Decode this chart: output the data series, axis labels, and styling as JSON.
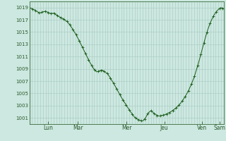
{
  "background_color": "#cce8e0",
  "plot_bg_color": "#cce8e0",
  "line_color": "#1a5c1a",
  "marker_color": "#1a5c1a",
  "grid_color_major": "#a8c8c0",
  "grid_color_minor": "#b8d4cc",
  "y_ticks": [
    1001,
    1003,
    1005,
    1007,
    1009,
    1011,
    1013,
    1015,
    1017,
    1019
  ],
  "ylim": [
    1000.0,
    1020.0
  ],
  "xlim": [
    0,
    144
  ],
  "x_tick_positions": [
    14,
    36,
    72,
    100,
    128,
    141
  ],
  "x_tick_labels": [
    "Lun",
    "Mar",
    "Mer",
    "Jeu",
    "Ven",
    "Sam"
  ],
  "pressure_points": [
    [
      0,
      1019.0
    ],
    [
      2,
      1018.8
    ],
    [
      4,
      1018.6
    ],
    [
      6,
      1018.3
    ],
    [
      8,
      1018.1
    ],
    [
      10,
      1018.3
    ],
    [
      12,
      1018.4
    ],
    [
      14,
      1018.2
    ],
    [
      16,
      1018.0
    ],
    [
      18,
      1018.1
    ],
    [
      20,
      1017.8
    ],
    [
      22,
      1017.5
    ],
    [
      24,
      1017.3
    ],
    [
      26,
      1017.0
    ],
    [
      28,
      1016.7
    ],
    [
      30,
      1016.2
    ],
    [
      32,
      1015.5
    ],
    [
      34,
      1014.8
    ],
    [
      36,
      1014.0
    ],
    [
      38,
      1013.1
    ],
    [
      40,
      1012.2
    ],
    [
      42,
      1011.3
    ],
    [
      44,
      1010.4
    ],
    [
      46,
      1009.6
    ],
    [
      48,
      1008.9
    ],
    [
      50,
      1008.5
    ],
    [
      52,
      1008.7
    ],
    [
      54,
      1008.8
    ],
    [
      56,
      1008.5
    ],
    [
      58,
      1008.2
    ],
    [
      60,
      1007.5
    ],
    [
      62,
      1006.8
    ],
    [
      64,
      1006.0
    ],
    [
      66,
      1005.2
    ],
    [
      68,
      1004.4
    ],
    [
      70,
      1003.7
    ],
    [
      72,
      1003.0
    ],
    [
      74,
      1002.3
    ],
    [
      76,
      1001.7
    ],
    [
      78,
      1001.1
    ],
    [
      80,
      1000.8
    ],
    [
      82,
      1000.6
    ],
    [
      84,
      1000.5
    ],
    [
      86,
      1001.0
    ],
    [
      88,
      1001.8
    ],
    [
      90,
      1002.2
    ],
    [
      92,
      1001.8
    ],
    [
      94,
      1001.5
    ],
    [
      96,
      1001.3
    ],
    [
      98,
      1001.4
    ],
    [
      100,
      1001.5
    ],
    [
      102,
      1001.7
    ],
    [
      104,
      1001.9
    ],
    [
      106,
      1002.2
    ],
    [
      108,
      1002.5
    ],
    [
      110,
      1002.9
    ],
    [
      112,
      1003.4
    ],
    [
      114,
      1004.0
    ],
    [
      116,
      1004.7
    ],
    [
      118,
      1005.5
    ],
    [
      120,
      1006.5
    ],
    [
      122,
      1007.6
    ],
    [
      124,
      1009.0
    ],
    [
      126,
      1010.5
    ],
    [
      128,
      1012.2
    ],
    [
      130,
      1013.8
    ],
    [
      132,
      1015.3
    ],
    [
      134,
      1016.5
    ],
    [
      136,
      1017.5
    ],
    [
      138,
      1018.2
    ],
    [
      140,
      1018.7
    ],
    [
      142,
      1019.0
    ],
    [
      144,
      1018.8
    ]
  ]
}
